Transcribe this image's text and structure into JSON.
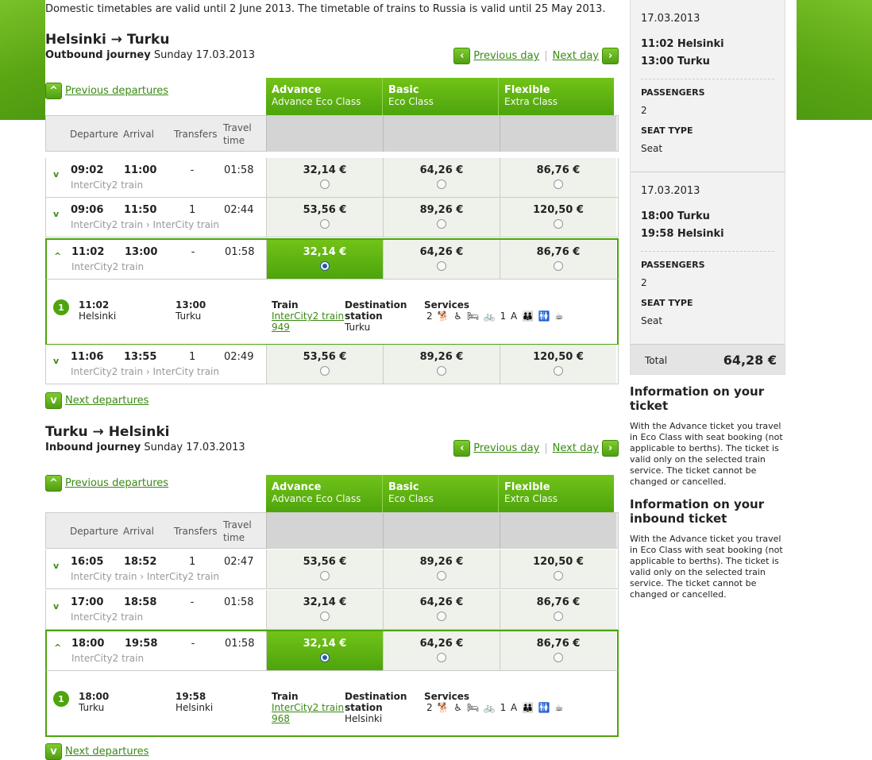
{
  "notice": "Domestic timetables are valid until 2 June 2013. The timetable of trains to Russia is valid until 25 May 2013.",
  "labels": {
    "previous_day": "Previous day",
    "next_day": "Next day",
    "previous_departures": "Previous departures",
    "next_departures": "Next departures",
    "col_departure": "Departure",
    "col_arrival": "Arrival",
    "col_transfers": "Transfers",
    "col_travel": "Travel",
    "col_time": "time",
    "detail_train": "Train",
    "detail_destination": "Destination",
    "detail_station": "station",
    "detail_services": "Services",
    "services_icons": "2 🐕 ♿ 🛏 🚲 1 A 👪 🚻 ☕",
    "fares": [
      {
        "name": "Advance",
        "class": "Advance Eco Class"
      },
      {
        "name": "Basic",
        "class": "Eco Class"
      },
      {
        "name": "Flexible",
        "class": "Extra Class"
      }
    ]
  },
  "outbound": {
    "title": "Helsinki → Turku",
    "journey_label": "Outbound journey",
    "date": "Sunday 17.03.2013",
    "rows": [
      {
        "dep": "09:02",
        "arr": "11:00",
        "transfers": "-",
        "dur": "01:58",
        "type": "InterCity2 train",
        "p1": "32,14 €",
        "p2": "64,26 €",
        "p3": "86,76 €"
      },
      {
        "dep": "09:06",
        "arr": "11:50",
        "transfers": "1",
        "dur": "02:44",
        "type": "InterCity2 train › InterCity train",
        "p1": "53,56 €",
        "p2": "89,26 €",
        "p3": "120,50 €"
      },
      {
        "dep": "11:02",
        "arr": "13:00",
        "transfers": "-",
        "dur": "01:58",
        "type": "InterCity2 train",
        "p1": "32,14 €",
        "p2": "64,26 €",
        "p3": "86,76 €"
      },
      {
        "dep": "11:06",
        "arr": "13:55",
        "transfers": "1",
        "dur": "02:49",
        "type": "InterCity2 train › InterCity train",
        "p1": "53,56 €",
        "p2": "89,26 €",
        "p3": "120,50 €"
      }
    ],
    "detail": {
      "num": "1",
      "dep_time": "11:02",
      "dep_station": "Helsinki",
      "arr_time": "13:00",
      "arr_station": "Turku",
      "train_link": "InterCity2 train",
      "train_no": "949",
      "destination": "Turku"
    }
  },
  "inbound": {
    "title": "Turku → Helsinki",
    "journey_label": "Inbound journey",
    "date": "Sunday 17.03.2013",
    "rows": [
      {
        "dep": "16:05",
        "arr": "18:52",
        "transfers": "1",
        "dur": "02:47",
        "type": "InterCity train › InterCity2 train",
        "p1": "53,56 €",
        "p2": "89,26 €",
        "p3": "120,50 €"
      },
      {
        "dep": "17:00",
        "arr": "18:58",
        "transfers": "-",
        "dur": "01:58",
        "type": "InterCity2 train",
        "p1": "32,14 €",
        "p2": "64,26 €",
        "p3": "86,76 €"
      },
      {
        "dep": "18:00",
        "arr": "19:58",
        "transfers": "-",
        "dur": "01:58",
        "type": "InterCity2 train",
        "p1": "32,14 €",
        "p2": "64,26 €",
        "p3": "86,76 €"
      }
    ],
    "detail": {
      "num": "1",
      "dep_time": "18:00",
      "dep_station": "Turku",
      "arr_time": "19:58",
      "arr_station": "Helsinki",
      "train_link": "InterCity2 train",
      "train_no": "968",
      "destination": "Helsinki"
    }
  },
  "summary": {
    "seg1": {
      "date": "17.03.2013",
      "line1": "11:02 Helsinki",
      "line2": "13:00 Turku",
      "passengers_label": "PASSENGERS",
      "passengers": "2",
      "seat_label": "SEAT TYPE",
      "seat": "Seat"
    },
    "seg2": {
      "date": "17.03.2013",
      "line1": "18:00 Turku",
      "line2": "19:58 Helsinki",
      "passengers_label": "PASSENGERS",
      "passengers": "2",
      "seat_label": "SEAT TYPE",
      "seat": "Seat"
    },
    "total_label": "Total",
    "total_value": "64,28 €"
  },
  "info": {
    "h1": "Information on your ticket",
    "p1": "With the Advance ticket you travel in Eco Class with seat booking (not applicable to berths). The ticket is valid only on the selected train service. The ticket cannot be changed or cancelled.",
    "h2": "Information on your inbound ticket",
    "p2": "With the Advance ticket you travel in Eco Class with seat booking (not applicable to berths). The ticket is valid only on the selected train service. The ticket cannot be changed or cancelled."
  },
  "colors": {
    "accent": "#4da40c",
    "link": "#3a8a14"
  }
}
